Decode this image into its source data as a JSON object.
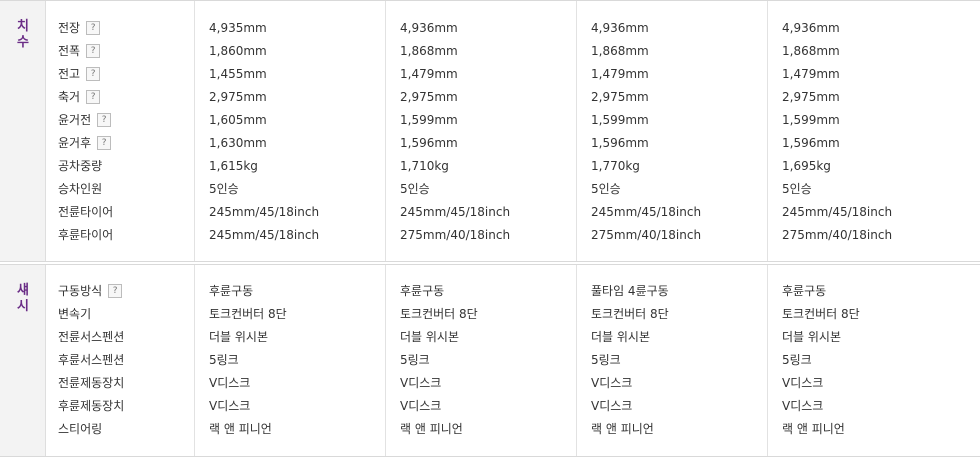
{
  "sections": [
    {
      "title": [
        "치",
        "수"
      ],
      "rows": [
        {
          "label": "전장",
          "help": "?",
          "values": [
            "4,935mm",
            "4,936mm",
            "4,936mm",
            "4,936mm"
          ]
        },
        {
          "label": "전폭",
          "help": "?",
          "values": [
            "1,860mm",
            "1,868mm",
            "1,868mm",
            "1,868mm"
          ]
        },
        {
          "label": "전고",
          "help": "?",
          "values": [
            "1,455mm",
            "1,479mm",
            "1,479mm",
            "1,479mm"
          ]
        },
        {
          "label": "축거",
          "help": "?",
          "values": [
            "2,975mm",
            "2,975mm",
            "2,975mm",
            "2,975mm"
          ]
        },
        {
          "label": "윤거전",
          "help": "?",
          "values": [
            "1,605mm",
            "1,599mm",
            "1,599mm",
            "1,599mm"
          ]
        },
        {
          "label": "윤거후",
          "help": "?",
          "values": [
            "1,630mm",
            "1,596mm",
            "1,596mm",
            "1,596mm"
          ]
        },
        {
          "label": "공차중량",
          "help": "",
          "values": [
            "1,615kg",
            "1,710kg",
            "1,770kg",
            "1,695kg"
          ]
        },
        {
          "label": "승차인원",
          "help": "",
          "values": [
            "5인승",
            "5인승",
            "5인승",
            "5인승"
          ]
        },
        {
          "label": "전륜타이어",
          "help": "",
          "values": [
            "245mm/45/18inch",
            "245mm/45/18inch",
            "245mm/45/18inch",
            "245mm/45/18inch"
          ]
        },
        {
          "label": "후륜타이어",
          "help": "",
          "values": [
            "245mm/45/18inch",
            "275mm/40/18inch",
            "275mm/40/18inch",
            "275mm/40/18inch"
          ]
        }
      ]
    },
    {
      "title": [
        "섀",
        "시"
      ],
      "rows": [
        {
          "label": "구동방식",
          "help": "?",
          "values": [
            "후륜구동",
            "후륜구동",
            "풀타임 4륜구동",
            "후륜구동"
          ]
        },
        {
          "label": "변속기",
          "help": "",
          "values": [
            "토크컨버터 8단",
            "토크컨버터 8단",
            "토크컨버터 8단",
            "토크컨버터 8단"
          ]
        },
        {
          "label": "전륜서스펜션",
          "help": "",
          "values": [
            "더블 위시본",
            "더블 위시본",
            "더블 위시본",
            "더블 위시본"
          ]
        },
        {
          "label": "후륜서스펜션",
          "help": "",
          "values": [
            "5링크",
            "5링크",
            "5링크",
            "5링크"
          ]
        },
        {
          "label": "전륜제동장치",
          "help": "",
          "values": [
            "V디스크",
            "V디스크",
            "V디스크",
            "V디스크"
          ]
        },
        {
          "label": "후륜제동장치",
          "help": "",
          "values": [
            "V디스크",
            "V디스크",
            "V디스크",
            "V디스크"
          ]
        },
        {
          "label": "스티어링",
          "help": "",
          "values": [
            "랙 앤 피니언",
            "랙 앤 피니언",
            "랙 앤 피니언",
            "랙 앤 피니언"
          ]
        }
      ]
    }
  ]
}
